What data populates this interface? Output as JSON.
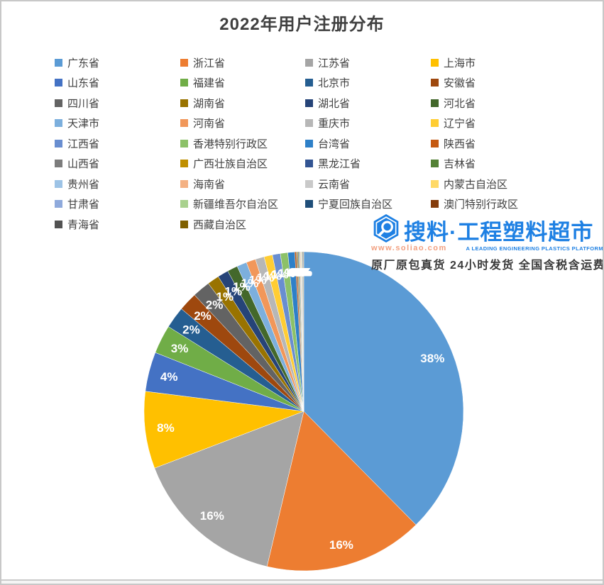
{
  "chart_data": {
    "type": "pie",
    "title": "2022年用户注册分布",
    "legend_position": "top",
    "legend_columns": 4,
    "start_angle_deg": 0,
    "direction": "clockwise",
    "data_label_color": "#FFFFFF",
    "slices": [
      {
        "name": "广东省",
        "value": 37.6,
        "label": "38%",
        "color": "#5B9BD5"
      },
      {
        "name": "浙江省",
        "value": 16.1,
        "label": "16%",
        "color": "#ED7D31"
      },
      {
        "name": "江苏省",
        "value": 15.5,
        "label": "16%",
        "color": "#A5A5A5"
      },
      {
        "name": "上海市",
        "value": 7.8,
        "label": "8%",
        "color": "#FFC000"
      },
      {
        "name": "山东省",
        "value": 4.0,
        "label": "4%",
        "color": "#4472C4"
      },
      {
        "name": "福建省",
        "value": 2.9,
        "label": "3%",
        "color": "#70AD47"
      },
      {
        "name": "北京市",
        "value": 2.2,
        "label": "2%",
        "color": "#255E91"
      },
      {
        "name": "安徽省",
        "value": 1.9,
        "label": "2%",
        "color": "#9E480E"
      },
      {
        "name": "四川省",
        "value": 1.8,
        "label": "2%",
        "color": "#636363"
      },
      {
        "name": "湖南省",
        "value": 1.2,
        "label": "1%",
        "color": "#997300"
      },
      {
        "name": "湖北省",
        "value": 1.1,
        "label": "1%",
        "color": "#264478"
      },
      {
        "name": "河北省",
        "value": 1.05,
        "label": "1%",
        "color": "#43682B"
      },
      {
        "name": "天津市",
        "value": 1.0,
        "label": "1%",
        "color": "#7CAFDD"
      },
      {
        "name": "河南省",
        "value": 0.95,
        "label": "1%",
        "color": "#F1975A"
      },
      {
        "name": "重庆市",
        "value": 0.9,
        "label": "1%",
        "color": "#B7B7B7"
      },
      {
        "name": "辽宁省",
        "value": 0.85,
        "label": "1%",
        "color": "#FFCD33"
      },
      {
        "name": "江西省",
        "value": 0.8,
        "label": "1%",
        "color": "#698ED0"
      },
      {
        "name": "香港特别行政区",
        "value": 0.75,
        "label": "1%",
        "color": "#8CC168"
      },
      {
        "name": "台湾省",
        "value": 0.7,
        "label": "1%",
        "color": "#2E80C8"
      },
      {
        "name": "陕西省",
        "value": 0.14,
        "label": "0%",
        "color": "#C55A11"
      },
      {
        "name": "山西省",
        "value": 0.1,
        "label": "0%",
        "color": "#7C7C7C"
      },
      {
        "name": "广西壮族自治区",
        "value": 0.08,
        "label": "0%",
        "color": "#BF8F00"
      },
      {
        "name": "黑龙江省",
        "value": 0.07,
        "label": "0%",
        "color": "#335593"
      },
      {
        "name": "吉林省",
        "value": 0.06,
        "label": "0%",
        "color": "#538135"
      },
      {
        "name": "贵州省",
        "value": 0.06,
        "label": "0%",
        "color": "#9DC3E6"
      },
      {
        "name": "海南省",
        "value": 0.06,
        "label": "0%",
        "color": "#F4B183"
      },
      {
        "name": "云南省",
        "value": 0.05,
        "label": "0%",
        "color": "#C9C9C9"
      },
      {
        "name": "内蒙古自治区",
        "value": 0.05,
        "label": "0%",
        "color": "#FFD966"
      },
      {
        "name": "甘肃省",
        "value": 0.05,
        "label": "0%",
        "color": "#8FAADC"
      },
      {
        "name": "新疆维吾尔自治区",
        "value": 0.04,
        "label": "0%",
        "color": "#A9D18E"
      },
      {
        "name": "宁夏回族自治区",
        "value": 0.04,
        "label": "0%",
        "color": "#1F4E79"
      },
      {
        "name": "澳门特别行政区",
        "value": 0.04,
        "label": "0%",
        "color": "#843C0C"
      },
      {
        "name": "青海省",
        "value": 0.03,
        "label": "0%",
        "color": "#525252"
      },
      {
        "name": "西藏自治区",
        "value": 0.03,
        "label": "0%",
        "color": "#7F6000"
      }
    ]
  },
  "watermark": {
    "brand": "搜料·工程塑料超市",
    "website": "www.soliao.com",
    "tagline": "A LEADING ENGINEERING PLASTICS PLATFORM",
    "promo": "原厂原包真货  24小时发货  全国含税含运费",
    "brand_color": "#1E80E3",
    "website_color": "#F2A080",
    "tagline_color": "#1E80E3",
    "promo_color": "#3A3A3A"
  }
}
